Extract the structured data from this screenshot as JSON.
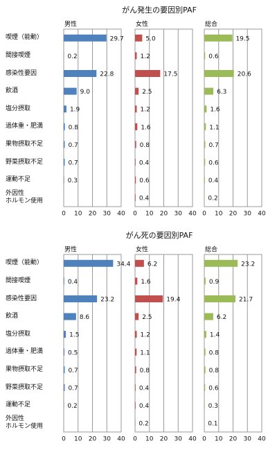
{
  "chart_data": [
    {
      "type": "bar",
      "orientation": "horizontal",
      "title": "がん発生の要因別PAF",
      "categories": [
        "喫煙（能動）",
        "間接喫煙",
        "感染性要因",
        "飲酒",
        "塩分摂取",
        "過体重・肥満",
        "果物摂取不足",
        "野菜摂取不足",
        "運動不足",
        "外因性\nホルモン使用"
      ],
      "xlim": [
        0,
        40
      ],
      "xticks": [
        0,
        10,
        20,
        30,
        40
      ],
      "grid": true,
      "series": [
        {
          "name": "男性",
          "color": "#4f81bd",
          "values": [
            29.7,
            0.2,
            22.8,
            9.0,
            1.9,
            0.8,
            0.7,
            0.7,
            0.3,
            null
          ],
          "value_labels": [
            "29.7",
            "0.2",
            "22.8",
            "9.0",
            "1.9",
            "0.8",
            "0.7",
            "0.7",
            "0.3",
            null
          ]
        },
        {
          "name": "女性",
          "color": "#c0504d",
          "values": [
            5.0,
            1.2,
            17.5,
            2.5,
            1.2,
            1.6,
            0.8,
            0.4,
            0.6,
            0.4
          ],
          "value_labels": [
            "5.0",
            "1.2",
            "17.5",
            "2.5",
            "1.2",
            "1.6",
            "0.8",
            "0.4",
            "0.6",
            "0.4"
          ]
        },
        {
          "name": "総合",
          "color": "#9bbb59",
          "values": [
            19.5,
            0.6,
            20.6,
            6.3,
            1.6,
            1.1,
            0.7,
            0.6,
            0.4,
            0.2
          ],
          "value_labels": [
            "19.5",
            "0.6",
            "20.6",
            "6.3",
            "1.6",
            "1.1",
            "0.7",
            "0.6",
            "0.4",
            "0.2"
          ]
        }
      ]
    },
    {
      "type": "bar",
      "orientation": "horizontal",
      "title": "がん死の要因別PAF",
      "categories": [
        "喫煙（能動）",
        "間接喫煙",
        "感染性要因",
        "飲酒",
        "塩分摂取",
        "過体重・肥満",
        "果物摂取不足",
        "野菜摂取不足",
        "運動不足",
        "外因性\nホルモン使用"
      ],
      "xlim": [
        0,
        40
      ],
      "xticks": [
        0,
        10,
        20,
        30,
        40
      ],
      "grid": true,
      "series": [
        {
          "name": "男性",
          "color": "#4f81bd",
          "values": [
            34.4,
            0.4,
            23.2,
            8.6,
            1.5,
            0.5,
            0.7,
            0.7,
            0.2,
            null
          ],
          "value_labels": [
            "34.4",
            "0.4",
            "23.2",
            "8.6",
            "1.5",
            "0.5",
            "0.7",
            "0.7",
            "0.2",
            null
          ]
        },
        {
          "name": "女性",
          "color": "#c0504d",
          "values": [
            6.2,
            1.6,
            19.4,
            2.5,
            1.2,
            1.1,
            0.8,
            0.4,
            0.4,
            0.2
          ],
          "value_labels": [
            "6.2",
            "1.6",
            "19.4",
            "2.5",
            "1.2",
            "1.1",
            "0.8",
            "0.4",
            "0.4",
            "0.2"
          ]
        },
        {
          "name": "総合",
          "color": "#9bbb59",
          "values": [
            23.2,
            0.9,
            21.7,
            6.2,
            1.4,
            0.8,
            0.8,
            0.6,
            0.3,
            0.1
          ],
          "value_labels": [
            "23.2",
            "0.9",
            "21.7",
            "6.2",
            "1.4",
            "0.8",
            "0.8",
            "0.6",
            "0.3",
            "0.1"
          ]
        }
      ]
    }
  ]
}
